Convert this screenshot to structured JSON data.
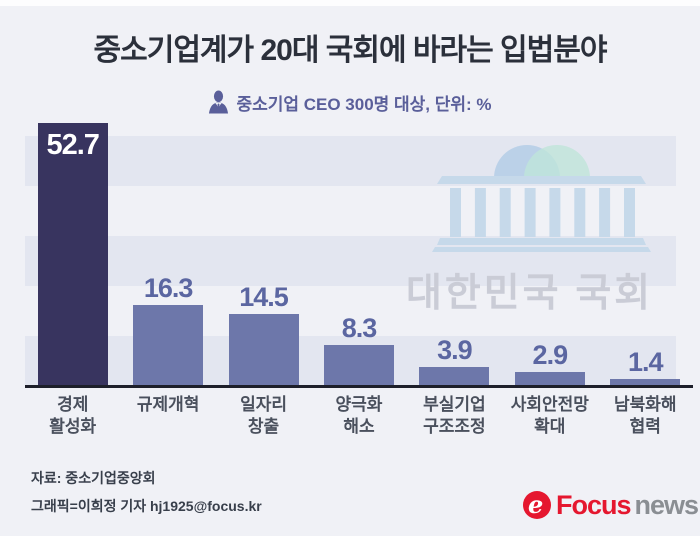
{
  "title": "중소기업계가 20대 국회에 바라는 입법분야",
  "subtitle": "중소기업 CEO 300명 대상, 단위: %",
  "watermark": "대한민국 국회",
  "chart_data": {
    "type": "bar",
    "title": "중소기업계가 20대 국회에 바라는 입법분야",
    "subtitle": "중소기업 CEO 300명 대상, 단위: %",
    "unit": "%",
    "categories": [
      "경제\n활성화",
      "규제개혁",
      "일자리\n창출",
      "양극화\n해소",
      "부실기업\n구조조정",
      "사회안전망\n확대",
      "남북화해\n협력"
    ],
    "values": [
      52.7,
      16.3,
      14.5,
      8.3,
      3.9,
      2.9,
      1.4
    ],
    "highlight_index": 0,
    "ylim": [
      0,
      54
    ],
    "gridband_step": 10,
    "legend": "none",
    "colors": {
      "highlight_bar": "#38345f",
      "bar": "#6d77aa",
      "value_label": "#5b66a1",
      "highlight_value_label": "#ffffff",
      "background": "#f0f1f6",
      "gridband": "#e3e6f0",
      "accent_red": "#e5172f"
    }
  },
  "icons": {
    "subtitle_icon": "businessman-icon",
    "watermark_icon": "assembly-building-icon",
    "logo_icon": "focusnews-swirl-icon"
  },
  "footer": {
    "source": "자료: 중소기업중앙회",
    "credit": "그래픽=이희정 기자 hj1925@focus.kr"
  },
  "logo": {
    "brand": "Focus",
    "suffix": "news"
  }
}
